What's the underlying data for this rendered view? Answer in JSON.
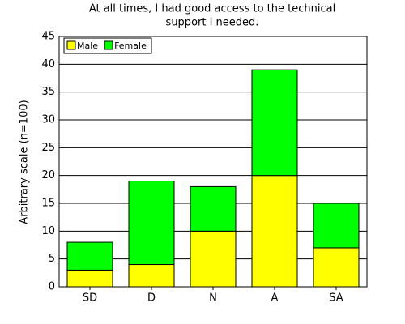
{
  "chart_data": {
    "type": "stacked_bar",
    "title": [
      "At all times, I had good access to the technical",
      "support I needed."
    ],
    "y_label": "Arbitrary scale (n=100)",
    "categories": [
      "SD",
      "D",
      "N",
      "A",
      "SA"
    ],
    "series": [
      {
        "name": "Male",
        "color": "#ffff00",
        "values": [
          3,
          4,
          10,
          20,
          7
        ]
      },
      {
        "name": "Female",
        "color": "#00ff00",
        "values": [
          5,
          15,
          8,
          19,
          8
        ]
      }
    ],
    "ylim": [
      0,
      45
    ],
    "yticks": [
      0,
      5,
      10,
      15,
      20,
      25,
      30,
      35,
      40,
      45
    ],
    "grid": true,
    "legend": "top-left"
  }
}
